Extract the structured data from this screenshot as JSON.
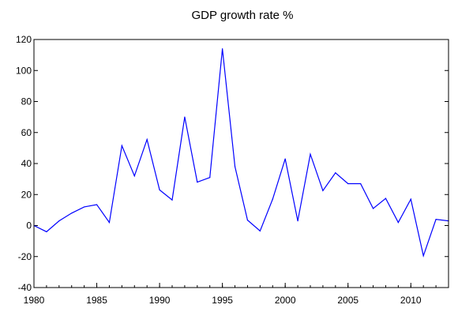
{
  "chart_data": {
    "type": "line",
    "title": "GDP growth rate %",
    "xlabel": "",
    "ylabel": "",
    "xlim": [
      1980,
      2013
    ],
    "ylim": [
      -40,
      120
    ],
    "x_ticks": [
      1980,
      1985,
      1990,
      1995,
      2000,
      2005,
      2010
    ],
    "y_ticks": [
      -40,
      -20,
      0,
      20,
      40,
      60,
      80,
      100,
      120
    ],
    "grid": false,
    "line_color": "#0000ff",
    "series": [
      {
        "x": [
          1980,
          1981,
          1982,
          1983,
          1984,
          1985,
          1986,
          1987,
          1988,
          1989,
          1990,
          1991,
          1992,
          1993,
          1994,
          1995,
          1996,
          1997,
          1998,
          1999,
          2000,
          2001,
          2002,
          2003,
          2004,
          2005,
          2006,
          2007,
          2008,
          2009,
          2010,
          2011,
          2012,
          2013
        ],
        "values": [
          0,
          -4,
          3,
          8,
          12,
          13.5,
          2,
          51.5,
          32,
          55.5,
          23,
          16.5,
          70,
          28,
          31,
          114,
          38,
          3.5,
          -3.5,
          17,
          43,
          3,
          46,
          22.5,
          34,
          27,
          27,
          11,
          17.5,
          2,
          17,
          -19.5,
          4,
          3
        ]
      }
    ]
  }
}
